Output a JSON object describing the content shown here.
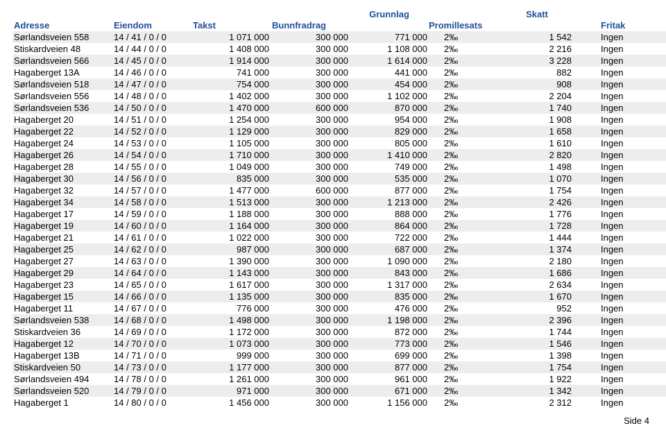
{
  "top_headers": {
    "grunnlag": "Grunnlag",
    "skatt": "Skatt"
  },
  "headers": {
    "adresse": "Adresse",
    "eiendom": "Eiendom",
    "takst": "Takst",
    "bunnfradrag": "Bunnfradrag",
    "promillesats": "Promillesats",
    "fritak": "Fritak"
  },
  "footer": "Side 4",
  "colors": {
    "header": "#1f4e9b",
    "row_alt": "#ededed",
    "text": "#000000",
    "bg": "#ffffff"
  },
  "rows": [
    {
      "adresse": "Sørlandsveien 558",
      "eiendom": "14 / 41 / 0 / 0",
      "takst": "1 071 000",
      "bunn": "300 000",
      "grunn": "771 000",
      "prom": "2‰",
      "skatt": "1 542",
      "fritak": "Ingen"
    },
    {
      "adresse": "Stiskardveien 48",
      "eiendom": "14 / 44 / 0 / 0",
      "takst": "1 408 000",
      "bunn": "300 000",
      "grunn": "1 108 000",
      "prom": "2‰",
      "skatt": "2 216",
      "fritak": "Ingen"
    },
    {
      "adresse": "Sørlandsveien 566",
      "eiendom": "14 / 45 / 0 / 0",
      "takst": "1 914 000",
      "bunn": "300 000",
      "grunn": "1 614 000",
      "prom": "2‰",
      "skatt": "3 228",
      "fritak": "Ingen"
    },
    {
      "adresse": "Hagaberget 13A",
      "eiendom": "14 / 46 / 0 / 0",
      "takst": "741 000",
      "bunn": "300 000",
      "grunn": "441 000",
      "prom": "2‰",
      "skatt": "882",
      "fritak": "Ingen"
    },
    {
      "adresse": "Sørlandsveien 518",
      "eiendom": "14 / 47 / 0 / 0",
      "takst": "754 000",
      "bunn": "300 000",
      "grunn": "454 000",
      "prom": "2‰",
      "skatt": "908",
      "fritak": "Ingen"
    },
    {
      "adresse": "Sørlandsveien 556",
      "eiendom": "14 / 48 / 0 / 0",
      "takst": "1 402 000",
      "bunn": "300 000",
      "grunn": "1 102 000",
      "prom": "2‰",
      "skatt": "2 204",
      "fritak": "Ingen"
    },
    {
      "adresse": "Sørlandsveien 536",
      "eiendom": "14 / 50 / 0 / 0",
      "takst": "1 470 000",
      "bunn": "600 000",
      "grunn": "870 000",
      "prom": "2‰",
      "skatt": "1 740",
      "fritak": "Ingen"
    },
    {
      "adresse": "Hagaberget 20",
      "eiendom": "14 / 51 / 0 / 0",
      "takst": "1 254 000",
      "bunn": "300 000",
      "grunn": "954 000",
      "prom": "2‰",
      "skatt": "1 908",
      "fritak": "Ingen"
    },
    {
      "adresse": "Hagaberget 22",
      "eiendom": "14 / 52 / 0 / 0",
      "takst": "1 129 000",
      "bunn": "300 000",
      "grunn": "829 000",
      "prom": "2‰",
      "skatt": "1 658",
      "fritak": "Ingen"
    },
    {
      "adresse": "Hagaberget 24",
      "eiendom": "14 / 53 / 0 / 0",
      "takst": "1 105 000",
      "bunn": "300 000",
      "grunn": "805 000",
      "prom": "2‰",
      "skatt": "1 610",
      "fritak": "Ingen"
    },
    {
      "adresse": "Hagaberget 26",
      "eiendom": "14 / 54 / 0 / 0",
      "takst": "1 710 000",
      "bunn": "300 000",
      "grunn": "1 410 000",
      "prom": "2‰",
      "skatt": "2 820",
      "fritak": "Ingen"
    },
    {
      "adresse": "Hagaberget 28",
      "eiendom": "14 / 55 / 0 / 0",
      "takst": "1 049 000",
      "bunn": "300 000",
      "grunn": "749 000",
      "prom": "2‰",
      "skatt": "1 498",
      "fritak": "Ingen"
    },
    {
      "adresse": "Hagaberget 30",
      "eiendom": "14 / 56 / 0 / 0",
      "takst": "835 000",
      "bunn": "300 000",
      "grunn": "535 000",
      "prom": "2‰",
      "skatt": "1 070",
      "fritak": "Ingen"
    },
    {
      "adresse": "Hagaberget 32",
      "eiendom": "14 / 57 / 0 / 0",
      "takst": "1 477 000",
      "bunn": "600 000",
      "grunn": "877 000",
      "prom": "2‰",
      "skatt": "1 754",
      "fritak": "Ingen"
    },
    {
      "adresse": "Hagaberget 34",
      "eiendom": "14 / 58 / 0 / 0",
      "takst": "1 513 000",
      "bunn": "300 000",
      "grunn": "1 213 000",
      "prom": "2‰",
      "skatt": "2 426",
      "fritak": "Ingen"
    },
    {
      "adresse": "Hagaberget 17",
      "eiendom": "14 / 59 / 0 / 0",
      "takst": "1 188 000",
      "bunn": "300 000",
      "grunn": "888 000",
      "prom": "2‰",
      "skatt": "1 776",
      "fritak": "Ingen"
    },
    {
      "adresse": "Hagaberget 19",
      "eiendom": "14 / 60 / 0 / 0",
      "takst": "1 164 000",
      "bunn": "300 000",
      "grunn": "864 000",
      "prom": "2‰",
      "skatt": "1 728",
      "fritak": "Ingen"
    },
    {
      "adresse": "Hagaberget 21",
      "eiendom": "14 / 61 / 0 / 0",
      "takst": "1 022 000",
      "bunn": "300 000",
      "grunn": "722 000",
      "prom": "2‰",
      "skatt": "1 444",
      "fritak": "Ingen"
    },
    {
      "adresse": "Hagaberget 25",
      "eiendom": "14 / 62 / 0 / 0",
      "takst": "987 000",
      "bunn": "300 000",
      "grunn": "687 000",
      "prom": "2‰",
      "skatt": "1 374",
      "fritak": "Ingen"
    },
    {
      "adresse": "Hagaberget 27",
      "eiendom": "14 / 63 / 0 / 0",
      "takst": "1 390 000",
      "bunn": "300 000",
      "grunn": "1 090 000",
      "prom": "2‰",
      "skatt": "2 180",
      "fritak": "Ingen"
    },
    {
      "adresse": "Hagaberget 29",
      "eiendom": "14 / 64 / 0 / 0",
      "takst": "1 143 000",
      "bunn": "300 000",
      "grunn": "843 000",
      "prom": "2‰",
      "skatt": "1 686",
      "fritak": "Ingen"
    },
    {
      "adresse": "Hagaberget 23",
      "eiendom": "14 / 65 / 0 / 0",
      "takst": "1 617 000",
      "bunn": "300 000",
      "grunn": "1 317 000",
      "prom": "2‰",
      "skatt": "2 634",
      "fritak": "Ingen"
    },
    {
      "adresse": "Hagaberget 15",
      "eiendom": "14 / 66 / 0 / 0",
      "takst": "1 135 000",
      "bunn": "300 000",
      "grunn": "835 000",
      "prom": "2‰",
      "skatt": "1 670",
      "fritak": "Ingen"
    },
    {
      "adresse": "Hagaberget 11",
      "eiendom": "14 / 67 / 0 / 0",
      "takst": "776 000",
      "bunn": "300 000",
      "grunn": "476 000",
      "prom": "2‰",
      "skatt": "952",
      "fritak": "Ingen"
    },
    {
      "adresse": "Sørlandsveien 538",
      "eiendom": "14 / 68 / 0 / 0",
      "takst": "1 498 000",
      "bunn": "300 000",
      "grunn": "1 198 000",
      "prom": "2‰",
      "skatt": "2 396",
      "fritak": "Ingen"
    },
    {
      "adresse": "Stiskardveien 36",
      "eiendom": "14 / 69 / 0 / 0",
      "takst": "1 172 000",
      "bunn": "300 000",
      "grunn": "872 000",
      "prom": "2‰",
      "skatt": "1 744",
      "fritak": "Ingen"
    },
    {
      "adresse": "Hagaberget 12",
      "eiendom": "14 / 70 / 0 / 0",
      "takst": "1 073 000",
      "bunn": "300 000",
      "grunn": "773 000",
      "prom": "2‰",
      "skatt": "1 546",
      "fritak": "Ingen"
    },
    {
      "adresse": "Hagaberget 13B",
      "eiendom": "14 / 71 / 0 / 0",
      "takst": "999 000",
      "bunn": "300 000",
      "grunn": "699 000",
      "prom": "2‰",
      "skatt": "1 398",
      "fritak": "Ingen"
    },
    {
      "adresse": "Stiskardveien 50",
      "eiendom": "14 / 73 / 0 / 0",
      "takst": "1 177 000",
      "bunn": "300 000",
      "grunn": "877 000",
      "prom": "2‰",
      "skatt": "1 754",
      "fritak": "Ingen"
    },
    {
      "adresse": "Sørlandsveien 494",
      "eiendom": "14 / 78 / 0 / 0",
      "takst": "1 261 000",
      "bunn": "300 000",
      "grunn": "961 000",
      "prom": "2‰",
      "skatt": "1 922",
      "fritak": "Ingen"
    },
    {
      "adresse": "Sørlandsveien 520",
      "eiendom": "14 / 79 / 0 / 0",
      "takst": "971 000",
      "bunn": "300 000",
      "grunn": "671 000",
      "prom": "2‰",
      "skatt": "1 342",
      "fritak": "Ingen"
    },
    {
      "adresse": "Hagaberget 1",
      "eiendom": "14 / 80 / 0 / 0",
      "takst": "1 456 000",
      "bunn": "300 000",
      "grunn": "1 156 000",
      "prom": "2‰",
      "skatt": "2 312",
      "fritak": "Ingen"
    }
  ]
}
